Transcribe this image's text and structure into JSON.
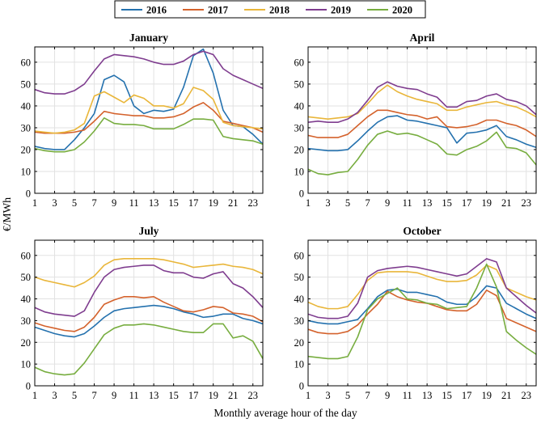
{
  "chart_data": {
    "type": "line",
    "xlabel": "Monthly average hour of the day",
    "ylabel": "€/MWh",
    "legend": {
      "position": "top",
      "entries": [
        "2016",
        "2017",
        "2018",
        "2019",
        "2020"
      ]
    },
    "colors": {
      "2016": "#2471ae",
      "2017": "#d4622c",
      "2018": "#e9b63a",
      "2019": "#7f3d8f",
      "2020": "#77ad3f"
    },
    "xlim": [
      1,
      24
    ],
    "ylim": [
      0,
      67
    ],
    "xticks": [
      "1",
      "3",
      "5",
      "7",
      "9",
      "11",
      "13",
      "15",
      "17",
      "19",
      "21",
      "23"
    ],
    "yticks": [
      "0",
      "10",
      "20",
      "30",
      "40",
      "50",
      "60"
    ],
    "grid": true,
    "x": [
      1,
      2,
      3,
      4,
      5,
      6,
      7,
      8,
      9,
      10,
      11,
      12,
      13,
      14,
      15,
      16,
      17,
      18,
      19,
      20,
      21,
      22,
      23,
      24
    ],
    "panels": [
      {
        "title": "January",
        "series": [
          {
            "name": "2016",
            "values": [
              21.5,
              20.5,
              20,
              20,
              24.5,
              30,
              36.5,
              52,
              54,
              51,
              40,
              36.5,
              38,
              37.5,
              38.5,
              48.5,
              63,
              66,
              55,
              38,
              31,
              30.5,
              27,
              22.5
            ]
          },
          {
            "name": "2017",
            "values": [
              28,
              27.5,
              27.5,
              27.5,
              28,
              29,
              33,
              37.5,
              36.5,
              36,
              35.5,
              35.5,
              34.5,
              34.5,
              35,
              36.5,
              39.5,
              41.5,
              38,
              33,
              32,
              31,
              30,
              28
            ]
          },
          {
            "name": "2018",
            "values": [
              28.5,
              28,
              27.5,
              28,
              29,
              32,
              44.5,
              46.5,
              44,
              41.5,
              45,
              43.5,
              40,
              40,
              39,
              41,
              48.5,
              47,
              43,
              32.5,
              31,
              30.5,
              30,
              29.5
            ]
          },
          {
            "name": "2019",
            "values": [
              47.5,
              46,
              45.5,
              45.5,
              47,
              50,
              56,
              61.5,
              63.5,
              63,
              62.5,
              61.5,
              60,
              59,
              59,
              60.5,
              63.5,
              65,
              63.5,
              57,
              54,
              52,
              50,
              48
            ]
          },
          {
            "name": "2020",
            "values": [
              20.5,
              19.5,
              19,
              19,
              20,
              23.5,
              28.5,
              34.5,
              32,
              31.5,
              31.5,
              31,
              29.5,
              29.5,
              29.5,
              31.5,
              34,
              34,
              33.5,
              26,
              25,
              24.5,
              24,
              22.5
            ]
          }
        ]
      },
      {
        "title": "April",
        "series": [
          {
            "name": "2016",
            "values": [
              20.5,
              20,
              19.5,
              19.5,
              20,
              24,
              28.5,
              32.5,
              35,
              35.5,
              33.5,
              33,
              32,
              31,
              30,
              23,
              27.5,
              28,
              29,
              31,
              26,
              24.5,
              22.5,
              21
            ]
          },
          {
            "name": "2017",
            "values": [
              26.5,
              25.5,
              25.5,
              25.5,
              27,
              31,
              35,
              38,
              38,
              37,
              36,
              35.5,
              34,
              35,
              30.5,
              30,
              30.5,
              31.5,
              33.5,
              33.5,
              32,
              31,
              29,
              26
            ]
          },
          {
            "name": "2018",
            "values": [
              35,
              34.5,
              34,
              34.5,
              35,
              36.5,
              41,
              46,
              49.5,
              46.5,
              44.5,
              43,
              42,
              41,
              38,
              38,
              39.5,
              40.5,
              41.5,
              42,
              40.5,
              39.5,
              37.5,
              35
            ]
          },
          {
            "name": "2019",
            "values": [
              32.5,
              33,
              32.5,
              32.5,
              34,
              37,
              42.5,
              48.5,
              51,
              49,
              48,
              47.5,
              45.5,
              44,
              39.5,
              39.5,
              42,
              42.5,
              44.5,
              45.5,
              43,
              42,
              40,
              36
            ]
          },
          {
            "name": "2020",
            "values": [
              11,
              9,
              8.5,
              9.5,
              10,
              15.5,
              22,
              27,
              28.5,
              27,
              27.5,
              26.5,
              24.5,
              22.5,
              18,
              17.5,
              20,
              21.5,
              24,
              28,
              21,
              20.5,
              18.5,
              13
            ]
          }
        ]
      },
      {
        "title": "July",
        "series": [
          {
            "name": "2016",
            "values": [
              27,
              25.5,
              24,
              23,
              22.5,
              24,
              27.5,
              31.5,
              34.5,
              35.5,
              36,
              36.5,
              37,
              36.5,
              35.5,
              34,
              33,
              31.5,
              32,
              33,
              33,
              31,
              30,
              28.5
            ]
          },
          {
            "name": "2017",
            "values": [
              29,
              27.5,
              26.5,
              25.5,
              25,
              27,
              31.5,
              37.5,
              39.5,
              41,
              41,
              40.5,
              41,
              38.5,
              36.5,
              34.5,
              34,
              35,
              36.5,
              36,
              33.5,
              33,
              32,
              29.5
            ]
          },
          {
            "name": "2018",
            "values": [
              50,
              48.5,
              47.5,
              46.5,
              45.5,
              47.5,
              50.5,
              55.5,
              58,
              58.5,
              58.5,
              58.5,
              58.5,
              58,
              57,
              56,
              54.5,
              55,
              55.5,
              56,
              55,
              54.5,
              53.5,
              51.5
            ]
          },
          {
            "name": "2019",
            "values": [
              36,
              34,
              33,
              32.5,
              32,
              34.5,
              43,
              50,
              53.5,
              54.5,
              55,
              55.5,
              55.5,
              53,
              52,
              52,
              50,
              49.5,
              51.5,
              52.5,
              47,
              45,
              41,
              36
            ]
          },
          {
            "name": "2020",
            "values": [
              8.5,
              6.5,
              5.5,
              5,
              5.5,
              10.5,
              17,
              23.5,
              26.5,
              28,
              28,
              28.5,
              28,
              27,
              26,
              25,
              24.5,
              24.5,
              28.5,
              28.5,
              22,
              23,
              20.5,
              12.5
            ]
          }
        ]
      },
      {
        "title": "October",
        "series": [
          {
            "name": "2016",
            "values": [
              30,
              29,
              28.5,
              28.5,
              29.5,
              30.5,
              35.5,
              41,
              44,
              44.5,
              43,
              43,
              42,
              41,
              38.5,
              37.5,
              37.5,
              41,
              46,
              45,
              38,
              35.5,
              33,
              31
            ]
          },
          {
            "name": "2017",
            "values": [
              26,
              24.5,
              24,
              24,
              25,
              28,
              33,
              37.5,
              43.5,
              41,
              39.5,
              38.5,
              38,
              36.5,
              35,
              34.5,
              34.5,
              37.5,
              44,
              41.5,
              31,
              29,
              27,
              25
            ]
          },
          {
            "name": "2018",
            "values": [
              38.5,
              36.5,
              35.5,
              35.5,
              36.5,
              42,
              48.5,
              52,
              52.5,
              52.5,
              52.5,
              52,
              50.5,
              49,
              48,
              48,
              48.5,
              51,
              55.5,
              53.5,
              45,
              43,
              41,
              39.5
            ]
          },
          {
            "name": "2019",
            "values": [
              33,
              31.5,
              31,
              31,
              32,
              38,
              50,
              53,
              54,
              54.5,
              55,
              54.5,
              53.5,
              52.5,
              51.5,
              50.5,
              51.5,
              55,
              58.5,
              57,
              45,
              41,
              37,
              33.5
            ]
          },
          {
            "name": "2020",
            "values": [
              13.5,
              13,
              12.5,
              12.5,
              13.5,
              22.5,
              35,
              40,
              42.5,
              45,
              40,
              39.5,
              38,
              37.5,
              35.5,
              36,
              36.5,
              45,
              56,
              45.5,
              25,
              21,
              17.5,
              14.5
            ]
          }
        ]
      }
    ]
  }
}
